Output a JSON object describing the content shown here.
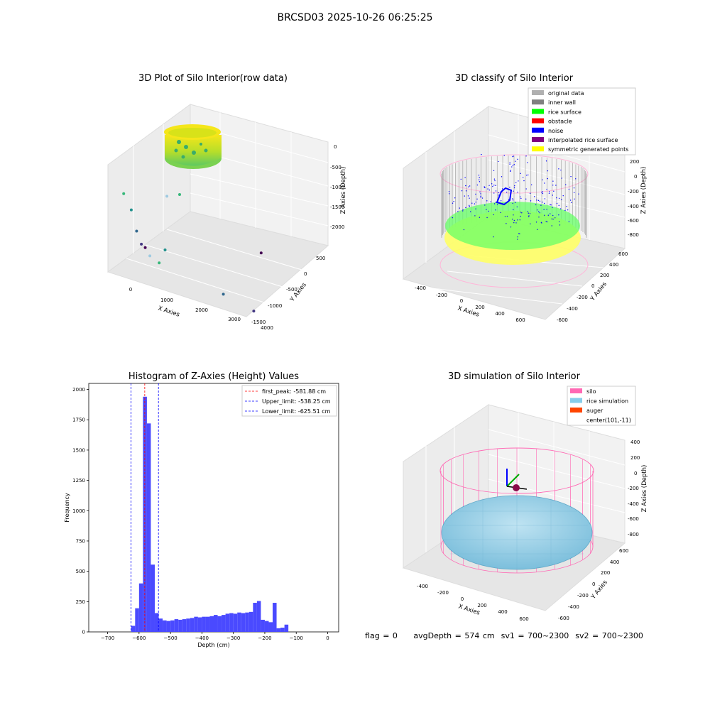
{
  "page_title": "BRCSD03 2025-10-26 06:25:25",
  "footer": "flag = 0     avgDepth = 574 cm  sv1 = 700~2300  sv2 = 700~2300",
  "colors": {
    "hist_bar": "#4a4aff",
    "first_peak_line": "#ff0000",
    "limit_lines": "#0000ff",
    "silo": "#ff69b4",
    "rice_simulation": "#87ceeb",
    "auger": "#ff4500",
    "inner_wall": "#808080",
    "rice_surface": "#00ff00",
    "noise": "#0000ff",
    "symmetric_points": "#ffff00"
  },
  "chart_data": [
    {
      "type": "scatter",
      "subtype": "3d",
      "title": "3D Plot of Silo Interior(row data)",
      "xlabel": "X Axies",
      "ylabel": "Y Axies",
      "zlabel": "Z Axies (Depth)",
      "x_ticks": [
        "0",
        "1000",
        "2000",
        "3000",
        "4000"
      ],
      "y_ticks": [
        "500",
        "0",
        "-500",
        "-1000",
        "-1500"
      ],
      "z_ticks": [
        "0",
        "-500",
        "-1000",
        "-1500",
        "-2000"
      ],
      "outliers": [
        {
          "x": 150,
          "y": 600,
          "z": -1100
        },
        {
          "x": 300,
          "y": 500,
          "z": -1300
        },
        {
          "x": 420,
          "y": 450,
          "z": -1600
        },
        {
          "x": 450,
          "y": 300,
          "z": -1750
        },
        {
          "x": 600,
          "y": 350,
          "z": -1800
        },
        {
          "x": 700,
          "y": 300,
          "z": -1900
        },
        {
          "x": 900,
          "y": 200,
          "z": -1950
        },
        {
          "x": 1000,
          "y": 100,
          "z": -1700
        },
        {
          "x": 2200,
          "y": -600,
          "z": -2000
        },
        {
          "x": 2800,
          "y": -1000,
          "z": -2050
        },
        {
          "x": 3600,
          "y": -200,
          "z": -1300
        },
        {
          "x": 1200,
          "y": 300,
          "z": -900
        },
        {
          "x": 1500,
          "y": 200,
          "z": -800
        }
      ]
    },
    {
      "type": "scatter",
      "subtype": "3d",
      "title": "3D classify of Silo Interior",
      "xlabel": "X Axies",
      "ylabel": "Y Axies",
      "zlabel": "Z Axies (Depth)",
      "x_ticks": [
        "-400",
        "-200",
        "0",
        "200",
        "400",
        "600"
      ],
      "y_ticks": [
        "600",
        "400",
        "200",
        "0",
        "-200",
        "-400",
        "-600"
      ],
      "z_ticks": [
        "200",
        "0",
        "-200",
        "-400",
        "-600",
        "-800"
      ],
      "z_ticks_partial": [
        "0",
        "-200",
        "-400",
        "-600",
        "-800"
      ],
      "legend": [
        {
          "label": "original data",
          "color": "#b0b0b0"
        },
        {
          "label": "inner wall",
          "color": "#808080"
        },
        {
          "label": "rice surface",
          "color": "#00ff00"
        },
        {
          "label": "obstacle",
          "color": "#ff0000"
        },
        {
          "label": "noise",
          "color": "#0000ff"
        },
        {
          "label": "interpolated rice surface",
          "color": "#800080"
        },
        {
          "label": "symmetric generated points",
          "color": "#ffff00"
        }
      ]
    },
    {
      "type": "bar",
      "subtype": "histogram",
      "title": "Histogram of Z-Axies (Height) Values",
      "xlabel": "Depth (cm)",
      "ylabel": "Frequency",
      "xlim": [
        -760,
        35
      ],
      "ylim": [
        0,
        2050
      ],
      "x_ticks": [
        -700,
        -600,
        -500,
        -400,
        -300,
        -200,
        -100,
        0
      ],
      "y_ticks": [
        0,
        250,
        500,
        750,
        1000,
        1250,
        1500,
        1750,
        2000
      ],
      "bin_width": 12.5,
      "bin_start": -625,
      "values": [
        50,
        195,
        400,
        1940,
        1720,
        555,
        155,
        110,
        95,
        90,
        95,
        105,
        100,
        105,
        110,
        115,
        125,
        120,
        125,
        125,
        130,
        140,
        130,
        140,
        150,
        155,
        150,
        160,
        155,
        160,
        165,
        240,
        255,
        100,
        90,
        80,
        240,
        30,
        35,
        60
      ],
      "vlines": [
        {
          "x": -581.88,
          "label": "first_peak: -581.88 cm",
          "color": "#ff0000"
        },
        {
          "x": -538.25,
          "label": "Upper_limit: -538.25 cm",
          "color": "#0000ff"
        },
        {
          "x": -625.51,
          "label": "Lower_limit: -625.51 cm",
          "color": "#0000ff"
        }
      ],
      "legend_position": "top-right"
    },
    {
      "type": "scatter",
      "subtype": "3d",
      "title": "3D simulation of Silo Interior",
      "xlabel": "X Axies",
      "ylabel": "Y Axies",
      "zlabel": "Z Axies (Depth)",
      "x_ticks": [
        "-400",
        "-200",
        "0",
        "200",
        "400",
        "600"
      ],
      "y_ticks": [
        "600",
        "400",
        "200",
        "0",
        "-200",
        "-400",
        "-600"
      ],
      "z_ticks": [
        "400",
        "200",
        "0",
        "-200",
        "-400",
        "-600",
        "-800"
      ],
      "legend": [
        {
          "label": "silo",
          "color": "#ff69b4"
        },
        {
          "label": "rice simulation",
          "color": "#87ceeb"
        },
        {
          "label": "auger",
          "color": "#ff4500"
        },
        {
          "label": "center(101,-11)",
          "color": ""
        }
      ]
    }
  ]
}
